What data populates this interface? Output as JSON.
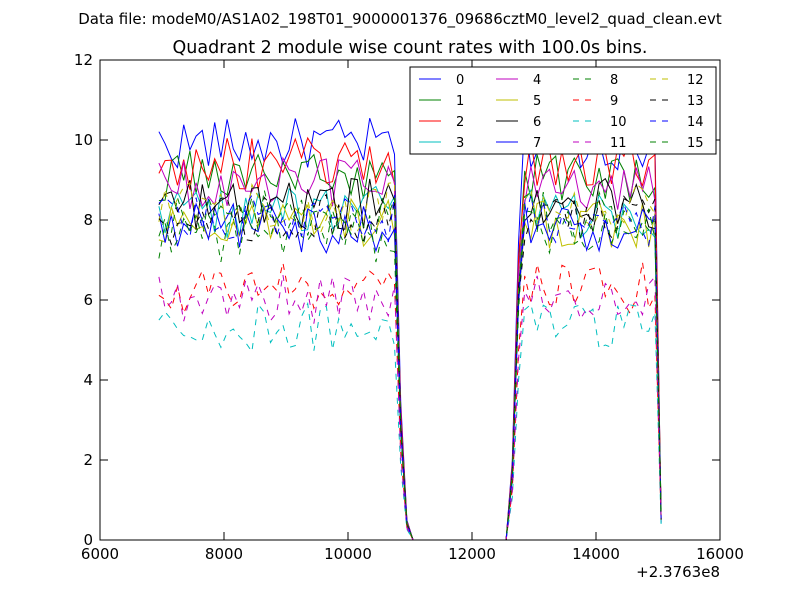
{
  "chart_data": {
    "type": "line",
    "suptitle": "Data file: modeM0/AS1A02_198T01_9000001376_09686cztM0_level2_quad_clean.evt",
    "title": "Quadrant 2 module wise count rates with 100.0s bins.",
    "xlabel": "",
    "ylabel": "",
    "x_offset_label": "+2.3763e8",
    "xlim": [
      6000,
      16000
    ],
    "ylim": [
      0,
      12
    ],
    "xticks": [
      6000,
      8000,
      10000,
      12000,
      14000,
      16000
    ],
    "xtick_labels": [
      "6000",
      "8000",
      "10000",
      "12000",
      "14000",
      "16000"
    ],
    "yticks": [
      0,
      2,
      4,
      6,
      8,
      10,
      12
    ],
    "ytick_labels": [
      "0",
      "2",
      "4",
      "6",
      "8",
      "10",
      "12"
    ],
    "grid": false,
    "legend_position": "top-right",
    "legend_columns": 4,
    "time_segments": [
      {
        "start": 6950,
        "end": 10750,
        "step": 100
      },
      {
        "start": 12850,
        "end": 14950,
        "step": 100
      }
    ],
    "transition": {
      "drop_x": [
        10850,
        10950
      ],
      "gap_x": [
        11050,
        12550
      ],
      "rise_x": [
        12650,
        12750
      ],
      "last_x": 15050
    },
    "series": [
      {
        "name": "0",
        "color": "#0000ff",
        "dash": "solid",
        "level": 9.9
      },
      {
        "name": "1",
        "color": "#008000",
        "dash": "solid",
        "level": 9.1
      },
      {
        "name": "2",
        "color": "#ff0000",
        "dash": "solid",
        "level": 9.4
      },
      {
        "name": "3",
        "color": "#00bfbf",
        "dash": "solid",
        "level": 8.2
      },
      {
        "name": "4",
        "color": "#bf00bf",
        "dash": "solid",
        "level": 8.9
      },
      {
        "name": "5",
        "color": "#bfbf00",
        "dash": "solid",
        "level": 7.9
      },
      {
        "name": "6",
        "color": "#000000",
        "dash": "solid",
        "level": 8.4
      },
      {
        "name": "7",
        "color": "#0000ff",
        "dash": "solid",
        "level": 7.8
      },
      {
        "name": "8",
        "color": "#008000",
        "dash": "dashed",
        "level": 7.6
      },
      {
        "name": "9",
        "color": "#ff0000",
        "dash": "dashed",
        "level": 6.3
      },
      {
        "name": "10",
        "color": "#00bfbf",
        "dash": "dashed",
        "level": 5.3
      },
      {
        "name": "11",
        "color": "#bf00bf",
        "dash": "dashed",
        "level": 6.0
      },
      {
        "name": "12",
        "color": "#bfbf00",
        "dash": "dashed",
        "level": 8.3
      },
      {
        "name": "13",
        "color": "#000000",
        "dash": "dashed",
        "level": 8.0
      },
      {
        "name": "14",
        "color": "#0000ff",
        "dash": "dashed",
        "level": 8.0
      },
      {
        "name": "15",
        "color": "#008000",
        "dash": "dashed",
        "level": 8.1
      }
    ]
  }
}
